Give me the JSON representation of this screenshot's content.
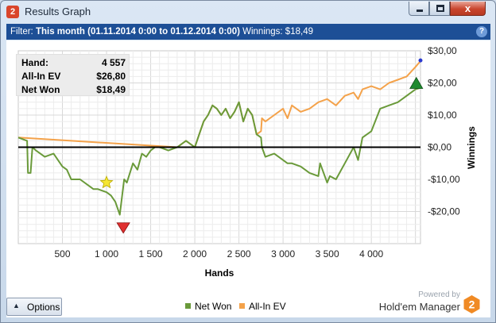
{
  "window": {
    "title": "Results Graph",
    "app_icon_label": "2",
    "close_glyph": "x"
  },
  "filter": {
    "prefix": "Filter:",
    "period": "This month (01.11.2014 0:00 to 01.12.2014 0:00)",
    "winnings": "Winnings: $18,49",
    "help_glyph": "?"
  },
  "stats": [
    {
      "label": "Hand:",
      "value": "4 557"
    },
    {
      "label": "All-In EV",
      "value": "$26,80"
    },
    {
      "label": "Net Won",
      "value": "$18,49"
    }
  ],
  "chart_data": {
    "type": "line",
    "xlabel": "Hands",
    "ylabel": "Winnings",
    "xlim": [
      0,
      4557
    ],
    "ylim": [
      -30,
      30
    ],
    "x_ticks": [
      500,
      1000,
      1500,
      2000,
      2500,
      3000,
      3500,
      4000
    ],
    "x_tick_labels": [
      "500",
      "1 000",
      "1 500",
      "2 000",
      "2 500",
      "3 000",
      "3 500",
      "4 000"
    ],
    "y_ticks": [
      -20,
      -10,
      0,
      10,
      20,
      30
    ],
    "y_tick_labels": [
      "-$20,00",
      "-$10,00",
      "$0,00",
      "$10,00",
      "$20,00",
      "$30,00"
    ],
    "grid": true,
    "legend_position": "bottom-center",
    "series": [
      {
        "name": "Net Won",
        "color": "#6a9a3a",
        "x": [
          0,
          100,
          110,
          140,
          160,
          200,
          300,
          400,
          500,
          550,
          600,
          700,
          800,
          850,
          900,
          1000,
          1050,
          1100,
          1150,
          1200,
          1230,
          1300,
          1350,
          1400,
          1450,
          1500,
          1550,
          1600,
          1700,
          1800,
          1900,
          2000,
          2050,
          2100,
          2150,
          2200,
          2250,
          2300,
          2350,
          2400,
          2450,
          2500,
          2550,
          2600,
          2650,
          2700,
          2750,
          2760,
          2800,
          2900,
          3000,
          3050,
          3100,
          3200,
          3300,
          3400,
          3420,
          3500,
          3530,
          3600,
          3700,
          3800,
          3850,
          3900,
          4000,
          4100,
          4200,
          4300,
          4400,
          4500,
          4557
        ],
        "y": [
          3,
          2,
          -8,
          -8,
          0,
          -1,
          -3,
          -2,
          -6,
          -7,
          -10,
          -10,
          -12,
          -13,
          -13,
          -14,
          -15,
          -17,
          -21,
          -10,
          -11,
          -5,
          -7,
          -2,
          -3,
          -1,
          0,
          0,
          -1,
          0,
          2,
          0,
          4,
          8,
          10,
          13,
          12,
          10,
          12,
          9,
          11,
          14,
          8,
          12,
          10,
          4,
          3,
          0,
          -3,
          -2,
          -4,
          -5,
          -5,
          -6,
          -8,
          -9,
          -5,
          -11,
          -9,
          -10,
          -5,
          0,
          -4,
          3,
          5,
          12,
          13,
          14,
          16,
          18,
          18.49
        ]
      },
      {
        "name": "All-In EV",
        "color": "#f4a24a",
        "x": [
          0,
          1800,
          1900,
          2000,
          2050,
          2100,
          2150,
          2200,
          2250,
          2300,
          2350,
          2400,
          2450,
          2500,
          2550,
          2600,
          2650,
          2700,
          2750,
          2760,
          2800,
          2900,
          3000,
          3050,
          3100,
          3200,
          3300,
          3400,
          3500,
          3600,
          3700,
          3800,
          3850,
          3900,
          4000,
          4100,
          4200,
          4300,
          4400,
          4500,
          4557
        ],
        "y": [
          3,
          0,
          2,
          0,
          4,
          8,
          10,
          13,
          12,
          10,
          12,
          9,
          11,
          14,
          8,
          12,
          10,
          4,
          5,
          9,
          8,
          10,
          12,
          9,
          13,
          11,
          12,
          14,
          15,
          13,
          16,
          17,
          15,
          18,
          19,
          18,
          20,
          21,
          22,
          25,
          26.8
        ]
      }
    ],
    "markers": [
      {
        "name": "star",
        "x": 1000,
        "y": -11
      },
      {
        "name": "min-down-triangle",
        "x": 1190,
        "y": -25
      },
      {
        "name": "max-up-triangle",
        "x": 4510,
        "y": 20
      },
      {
        "name": "endpoint-dot",
        "x": 4557,
        "y": 27
      }
    ]
  },
  "colors": {
    "filterbar_bg": "#1d4f96",
    "net_won": "#6a9a3a",
    "all_in_ev": "#f4a24a",
    "zero_line": "#000000",
    "min_marker": "#e03030",
    "max_marker": "#1e8a2e",
    "star_marker": "#f5e633"
  },
  "bottom": {
    "options_label": "Options",
    "options_arrow": "▲",
    "powered_by": "Powered by",
    "brand_name": "Hold'em Manager",
    "brand_logo_label": "2"
  }
}
